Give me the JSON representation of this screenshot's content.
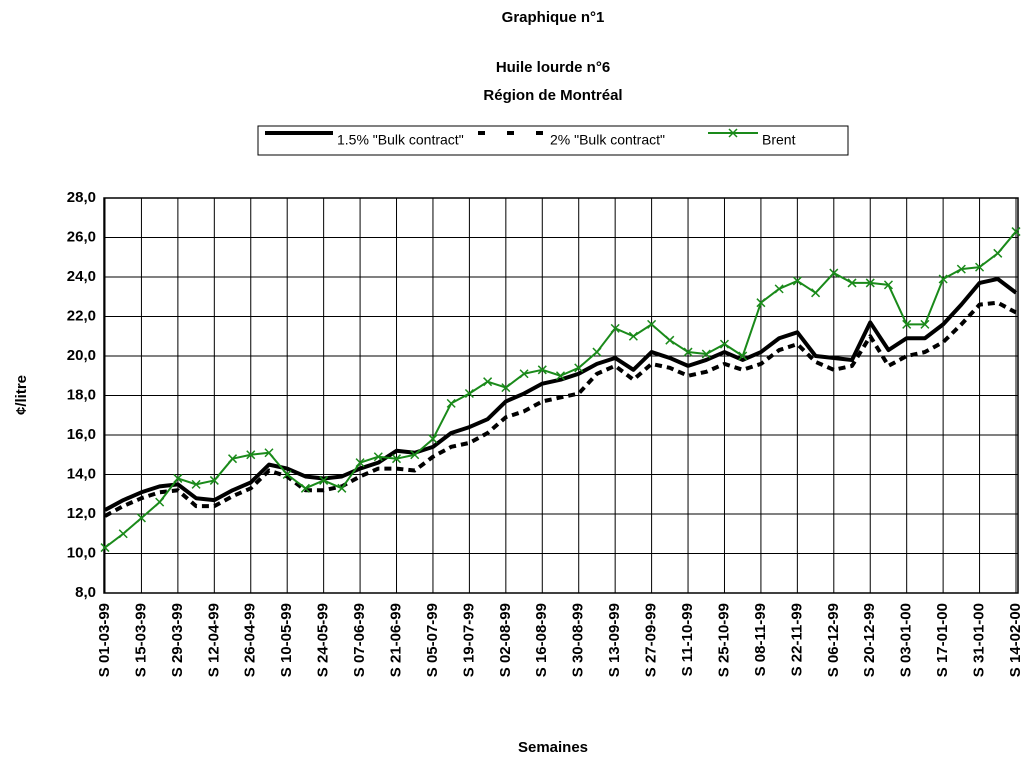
{
  "chart_data": {
    "type": "line",
    "title": [
      "Graphique n°1",
      "Huile lourde n°6",
      "Région de Montréal"
    ],
    "ylabel": "¢/litre",
    "xlabel": "Semaines",
    "categories": [
      "S 01-03-99",
      null,
      "S 15-03-99",
      null,
      "S 29-03-99",
      null,
      "S 12-04-99",
      null,
      "S 26-04-99",
      null,
      "S 10-05-99",
      null,
      "S 24-05-99",
      null,
      "S 07-06-99",
      null,
      "S 21-06-99",
      null,
      "S 05-07-99",
      null,
      "S 19-07-99",
      null,
      "S 02-08-99",
      null,
      "S 16-08-99",
      null,
      "S 30-08-99",
      null,
      "S 13-09-99",
      null,
      "S 27-09-99",
      null,
      "S 11-10-99",
      null,
      "S 25-10-99",
      null,
      "S 08-11-99",
      null,
      "S 22-11-99",
      null,
      "S 06-12-99",
      null,
      "S 20-12-99",
      null,
      "S 03-01-00",
      null,
      "S 17-01-00",
      null,
      "S 31-01-00",
      null,
      "S 14-02-00"
    ],
    "series": [
      {
        "name": "1.5% \"Bulk contract\"",
        "color": "#000000",
        "style": "solid",
        "values": [
          12.2,
          12.7,
          13.1,
          13.4,
          13.5,
          12.8,
          12.7,
          13.2,
          13.6,
          14.5,
          14.3,
          13.9,
          13.8,
          13.9,
          14.3,
          14.6,
          15.2,
          15.1,
          15.4,
          16.1,
          16.4,
          16.8,
          17.7,
          18.1,
          18.6,
          18.8,
          19.1,
          19.6,
          19.9,
          19.3,
          20.2,
          19.9,
          19.5,
          19.8,
          20.2,
          19.8,
          20.2,
          20.9,
          21.2,
          20.0,
          19.9,
          19.8,
          21.7,
          20.3,
          20.9,
          20.9,
          21.6,
          22.6,
          23.7,
          23.9,
          23.2
        ]
      },
      {
        "name": "2% \"Bulk contract\"",
        "color": "#000000",
        "style": "dashed",
        "values": [
          11.9,
          12.4,
          12.8,
          13.1,
          13.2,
          12.4,
          12.4,
          12.9,
          13.3,
          14.2,
          13.9,
          13.2,
          13.2,
          13.4,
          13.9,
          14.3,
          14.3,
          14.2,
          14.9,
          15.4,
          15.6,
          16.1,
          16.9,
          17.2,
          17.7,
          17.9,
          18.1,
          19.1,
          19.5,
          18.8,
          19.6,
          19.4,
          19.0,
          19.2,
          19.6,
          19.3,
          19.6,
          20.3,
          20.6,
          19.7,
          19.3,
          19.5,
          21.0,
          19.5,
          20.0,
          20.2,
          20.7,
          21.6,
          22.6,
          22.7,
          22.2
        ]
      },
      {
        "name": "Brent",
        "color": "#1a8a1a",
        "style": "solid",
        "marker": "x",
        "values": [
          10.3,
          11.0,
          11.8,
          12.6,
          13.8,
          13.5,
          13.7,
          14.8,
          15.0,
          15.1,
          14.0,
          13.3,
          13.7,
          13.3,
          14.6,
          14.9,
          14.8,
          15.0,
          15.8,
          17.6,
          18.1,
          18.7,
          18.4,
          19.1,
          19.3,
          19.0,
          19.4,
          20.2,
          21.4,
          21.0,
          21.6,
          20.8,
          20.2,
          20.1,
          20.6,
          20.0,
          22.7,
          23.4,
          23.8,
          23.2,
          24.2,
          23.7,
          23.7,
          23.6,
          21.6,
          21.6,
          23.9,
          24.4,
          24.5,
          25.2,
          26.3
        ]
      }
    ],
    "ylim": [
      8,
      28
    ],
    "yticks": [
      {
        "value": 8,
        "label": "8,0"
      },
      {
        "value": 10,
        "label": "10,0"
      },
      {
        "value": 12,
        "label": "12,0"
      },
      {
        "value": 14,
        "label": "14,0"
      },
      {
        "value": 16,
        "label": "16,0"
      },
      {
        "value": 18,
        "label": "18,0"
      },
      {
        "value": 20,
        "label": "20,0"
      },
      {
        "value": 22,
        "label": "22,0"
      },
      {
        "value": 24,
        "label": "24,0"
      },
      {
        "value": 26,
        "label": "26,0"
      },
      {
        "value": 28,
        "label": "28,0"
      }
    ],
    "grid": true,
    "legend": "top"
  }
}
